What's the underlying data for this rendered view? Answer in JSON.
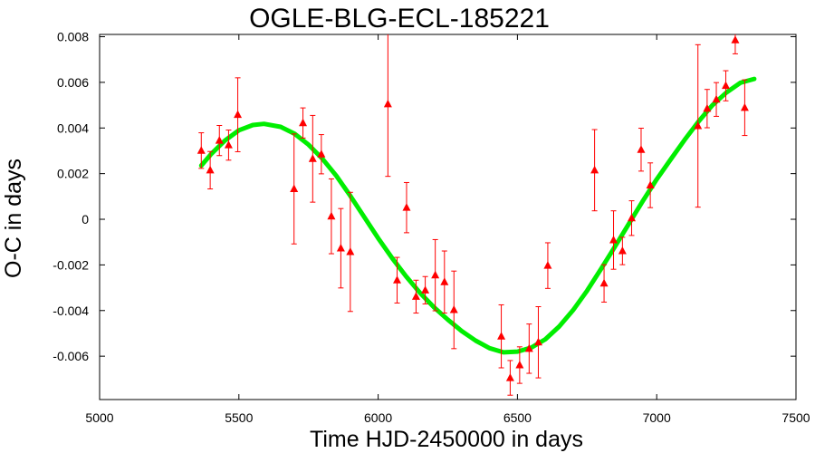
{
  "chart_data": {
    "type": "scatter",
    "title": "OGLE-BLG-ECL-185221",
    "xlabel": "Time HJD-2450000 in days",
    "ylabel": "O-C in days",
    "xlim": [
      5000,
      7500
    ],
    "ylim": [
      -0.0079,
      0.0081
    ],
    "xticks": [
      5000,
      5500,
      6000,
      6500,
      7000,
      7500
    ],
    "xtick_labels": [
      "5000",
      "5500",
      "6000",
      "6500",
      "7000",
      "7500"
    ],
    "yticks": [
      -0.006,
      -0.004,
      -0.002,
      0,
      0.002,
      0.004,
      0.006,
      0.008
    ],
    "ytick_labels": [
      "-0.006",
      "-0.004",
      "-0.002",
      "0",
      "0.002",
      "0.004",
      "0.006",
      "0.008"
    ],
    "grid": false,
    "legend": "none",
    "series": [
      {
        "type": "errorbar",
        "marker": "triangle",
        "color": "#ff0000",
        "points": [
          {
            "x": 5365,
            "y": 0.00301,
            "err": 0.00078
          },
          {
            "x": 5397,
            "y": 0.00215,
            "err": 0.00082
          },
          {
            "x": 5430,
            "y": 0.00345,
            "err": 0.00066
          },
          {
            "x": 5463,
            "y": 0.00325,
            "err": 0.00066
          },
          {
            "x": 5496,
            "y": 0.00458,
            "err": 0.00162
          },
          {
            "x": 5698,
            "y": 0.00133,
            "err": 0.00241
          },
          {
            "x": 5730,
            "y": 0.00422,
            "err": 0.00066
          },
          {
            "x": 5765,
            "y": 0.00265,
            "err": 0.0019
          },
          {
            "x": 5796,
            "y": 0.00285,
            "err": 0.00086
          },
          {
            "x": 5832,
            "y": 0.00013,
            "err": 0.00164
          },
          {
            "x": 5866,
            "y": -0.00127,
            "err": 0.00174
          },
          {
            "x": 5900,
            "y": -0.00143,
            "err": 0.00261
          },
          {
            "x": 6035,
            "y": 0.00505,
            "err": 0.00317
          },
          {
            "x": 6068,
            "y": -0.00267,
            "err": 0.001
          },
          {
            "x": 6102,
            "y": 0.00051,
            "err": 0.0011
          },
          {
            "x": 6136,
            "y": -0.00339,
            "err": 0.00072
          },
          {
            "x": 6169,
            "y": -0.00311,
            "err": 0.0006
          },
          {
            "x": 6205,
            "y": -0.00245,
            "err": 0.00156
          },
          {
            "x": 6238,
            "y": -0.00275,
            "err": 0.00136
          },
          {
            "x": 6272,
            "y": -0.00397,
            "err": 0.0017
          },
          {
            "x": 6442,
            "y": -0.00513,
            "err": 0.00138
          },
          {
            "x": 6474,
            "y": -0.00695,
            "err": 0.00076
          },
          {
            "x": 6508,
            "y": -0.00639,
            "err": 0.0008
          },
          {
            "x": 6542,
            "y": -0.00567,
            "err": 0.00108
          },
          {
            "x": 6575,
            "y": -0.00539,
            "err": 0.00156
          },
          {
            "x": 6609,
            "y": -0.00203,
            "err": 0.001
          },
          {
            "x": 6777,
            "y": 0.00215,
            "err": 0.00178
          },
          {
            "x": 6811,
            "y": -0.00281,
            "err": 0.00082
          },
          {
            "x": 6845,
            "y": -0.00091,
            "err": 0.00128
          },
          {
            "x": 6877,
            "y": -0.00139,
            "err": 0.0006
          },
          {
            "x": 6910,
            "y": 5e-05,
            "err": 0.00076
          },
          {
            "x": 6944,
            "y": 0.00305,
            "err": 0.00094
          },
          {
            "x": 6977,
            "y": 0.00149,
            "err": 0.00098
          },
          {
            "x": 7148,
            "y": 0.00409,
            "err": 0.00356
          },
          {
            "x": 7181,
            "y": 0.00485,
            "err": 0.00084
          },
          {
            "x": 7214,
            "y": 0.00525,
            "err": 0.00074
          },
          {
            "x": 7248,
            "y": 0.00585,
            "err": 0.00066
          },
          {
            "x": 7282,
            "y": 0.00785,
            "err": 0.0006
          },
          {
            "x": 7316,
            "y": 0.00489,
            "err": 0.00122
          }
        ]
      },
      {
        "type": "line",
        "color": "#00ee00",
        "x": [
          5365,
          5400,
          5450,
          5500,
          5550,
          5590,
          5650,
          5700,
          5750,
          5800,
          5850,
          5900,
          5950,
          6000,
          6050,
          6100,
          6150,
          6200,
          6250,
          6300,
          6350,
          6400,
          6450,
          6500,
          6550,
          6600,
          6650,
          6700,
          6750,
          6800,
          6850,
          6900,
          6950,
          7000,
          7050,
          7100,
          7150,
          7200,
          7250,
          7300,
          7350
        ],
        "y": [
          0.00235,
          0.00285,
          0.00345,
          0.0039,
          0.00413,
          0.00418,
          0.00405,
          0.00375,
          0.00327,
          0.00265,
          0.0019,
          0.00103,
          0.0001,
          -0.00083,
          -0.0017,
          -0.0025,
          -0.00322,
          -0.00385,
          -0.0044,
          -0.0049,
          -0.00532,
          -0.00565,
          -0.00583,
          -0.0058,
          -0.00562,
          -0.00526,
          -0.0047,
          -0.00398,
          -0.00313,
          -0.00218,
          -0.0012,
          -0.0002,
          0.0008,
          0.00175,
          0.00262,
          0.00348,
          0.00428,
          0.005,
          0.00555,
          0.00598,
          0.00615
        ]
      }
    ]
  }
}
